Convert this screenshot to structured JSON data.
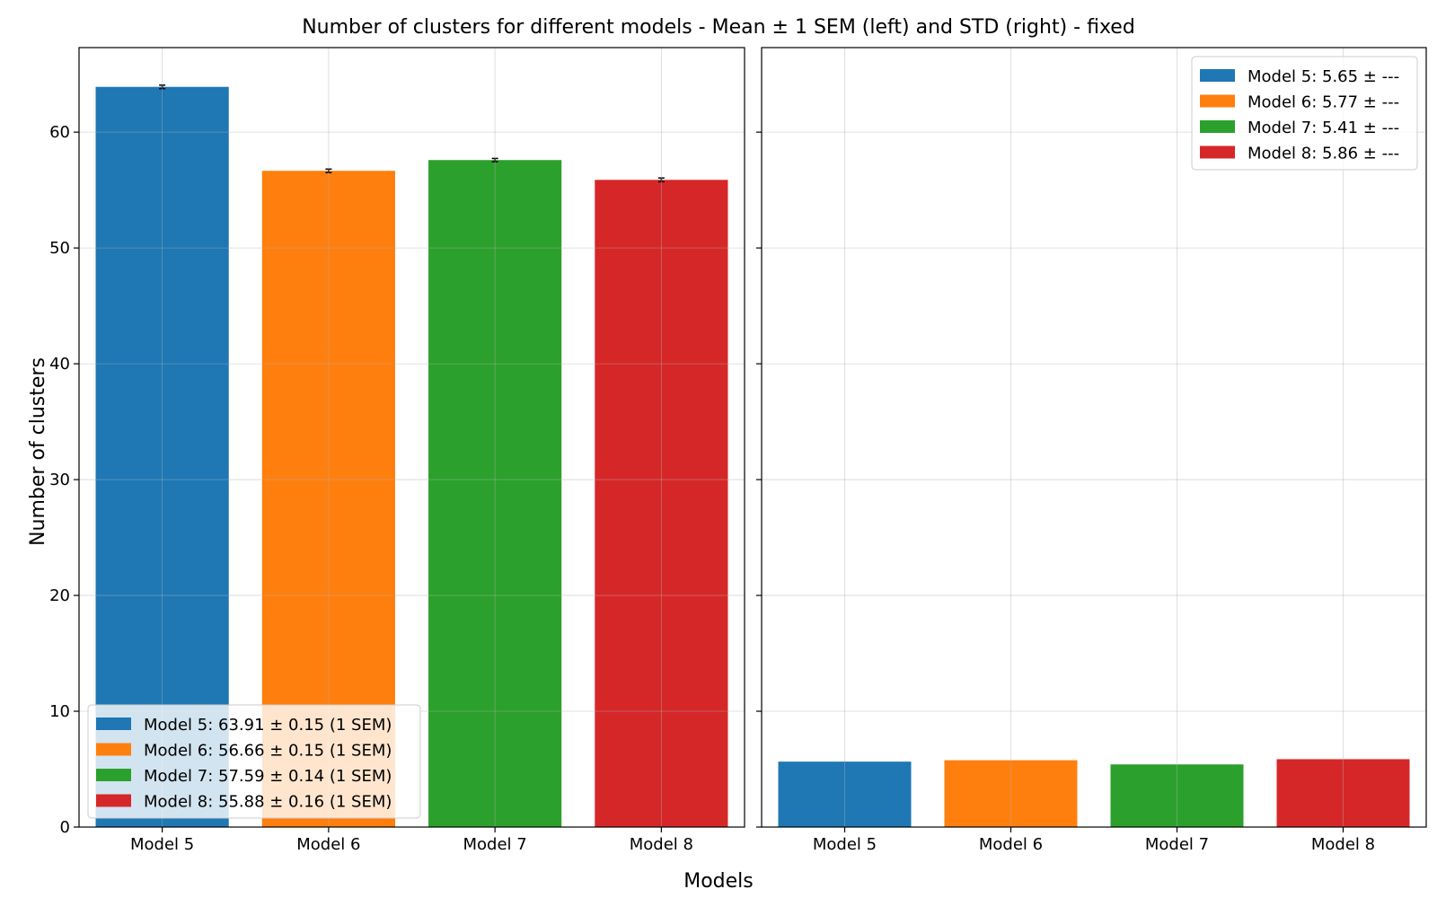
{
  "figure": {
    "title": "Number of clusters for different models - Mean ± 1 SEM (left) and STD (right) - fixed",
    "xlabel": "Models",
    "ylabel": "Number of clusters"
  },
  "chart_data": [
    {
      "type": "bar",
      "panel": "left",
      "categories": [
        "Model 5",
        "Model 6",
        "Model 7",
        "Model 8"
      ],
      "values": [
        63.91,
        56.66,
        57.59,
        55.88
      ],
      "errors": [
        0.15,
        0.15,
        0.14,
        0.16
      ],
      "colors": [
        "#1f77b4",
        "#ff7f0e",
        "#2ca02c",
        "#d62728"
      ],
      "ylim": [
        0,
        67.3
      ],
      "yticks": [
        0,
        10,
        20,
        30,
        40,
        50,
        60
      ],
      "grid": true,
      "legend_position": "lower-left",
      "legend": [
        "Model 5: 63.91 ± 0.15 (1 SEM)",
        "Model 6: 56.66 ± 0.15 (1 SEM)",
        "Model 7: 57.59 ± 0.14 (1 SEM)",
        "Model 8: 55.88 ± 0.16 (1 SEM)"
      ]
    },
    {
      "type": "bar",
      "panel": "right",
      "categories": [
        "Model 5",
        "Model 6",
        "Model 7",
        "Model 8"
      ],
      "values": [
        5.65,
        5.77,
        5.41,
        5.86
      ],
      "colors": [
        "#1f77b4",
        "#ff7f0e",
        "#2ca02c",
        "#d62728"
      ],
      "ylim": [
        0,
        67.3
      ],
      "yticks": [
        0,
        10,
        20,
        30,
        40,
        50,
        60
      ],
      "shared_y": true,
      "grid": true,
      "legend_position": "upper-right",
      "legend": [
        "Model 5: 5.65 ± ---",
        "Model 6: 5.77 ± ---",
        "Model 7: 5.41 ± ---",
        "Model 8: 5.86 ± ---"
      ]
    }
  ]
}
